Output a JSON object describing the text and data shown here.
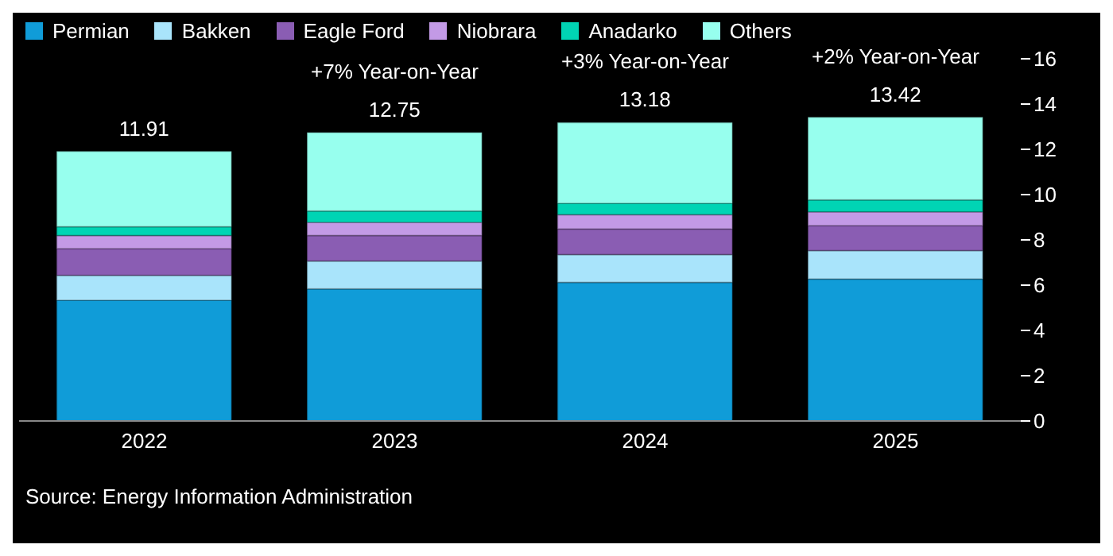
{
  "chart_data": {
    "type": "bar",
    "stacked": true,
    "categories": [
      "2022",
      "2023",
      "2024",
      "2025"
    ],
    "series": [
      {
        "name": "Permian",
        "color": "#109cd8",
        "values": [
          5.33,
          5.83,
          6.12,
          6.27
        ]
      },
      {
        "name": "Bakken",
        "color": "#a9e4fb",
        "values": [
          1.1,
          1.23,
          1.23,
          1.26
        ]
      },
      {
        "name": "Eagle Ford",
        "color": "#8a5db3",
        "values": [
          1.18,
          1.13,
          1.13,
          1.1
        ]
      },
      {
        "name": "Niobrara",
        "color": "#c39ae6",
        "values": [
          0.58,
          0.58,
          0.63,
          0.61
        ]
      },
      {
        "name": "Anadarko",
        "color": "#00d4b4",
        "values": [
          0.39,
          0.5,
          0.5,
          0.52
        ]
      },
      {
        "name": "Others",
        "color": "#97ffee",
        "values": [
          3.33,
          3.48,
          3.57,
          3.66
        ]
      }
    ],
    "totals": [
      "11.91",
      "12.75",
      "13.18",
      "13.42"
    ],
    "ylim": [
      0,
      16
    ],
    "yticks": [
      0,
      2,
      4,
      6,
      8,
      10,
      12,
      14,
      16
    ],
    "grid": false,
    "legend": "top left",
    "annotations": [
      {
        "text": "+7% Year-on-Year",
        "x": "2023",
        "y": 12.75
      },
      {
        "text": "+3% Year-on-Year",
        "x": "2024",
        "y": 13.18
      },
      {
        "text": "+2% Year-on-Year",
        "x": "2025",
        "y": 13.42
      },
      "Source: Energy Information Administration"
    ]
  }
}
